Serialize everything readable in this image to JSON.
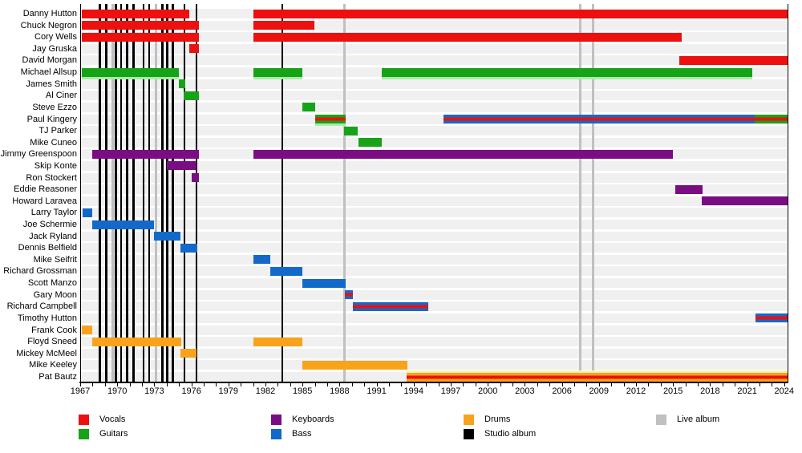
{
  "chart_data": {
    "type": "timeline",
    "title": "",
    "x_axis": {
      "tick_years": [
        1967,
        1970,
        1973,
        1976,
        1979,
        1982,
        1985,
        1988,
        1991,
        1994,
        1997,
        2000,
        2003,
        2006,
        2009,
        2012,
        2015,
        2018,
        2021,
        2024
      ],
      "minor_tick_every": 1,
      "range": [
        1967,
        2024.3
      ]
    },
    "colors": {
      "vocals": "#ee0f0f",
      "guitars": "#17a317",
      "keyboards": "#7a0d82",
      "bass": "#1369c9",
      "drums": "#f9a21b",
      "studio": "#000000",
      "live": "#c0c0c0",
      "stripe": "#ee0f0f",
      "halo_green": "#a9eaa9",
      "halo_yellow": "#fdeeb4",
      "row_band": "#f0f0f0"
    },
    "members": [
      {
        "name": "Danny Hutton",
        "segments": [
          {
            "start": 1967.1,
            "end": 1975.8,
            "color": "vocals"
          },
          {
            "start": 1981.0,
            "end": 2024.25,
            "color": "vocals"
          }
        ]
      },
      {
        "name": "Chuck Negron",
        "segments": [
          {
            "start": 1967.1,
            "end": 1976.6,
            "color": "vocals"
          },
          {
            "start": 1981.0,
            "end": 1985.95,
            "color": "vocals"
          }
        ]
      },
      {
        "name": "Cory Wells",
        "segments": [
          {
            "start": 1967.1,
            "end": 1976.6,
            "color": "vocals"
          },
          {
            "start": 1981.0,
            "end": 2015.7,
            "color": "vocals"
          }
        ]
      },
      {
        "name": "Jay Gruska",
        "segments": [
          {
            "start": 1975.8,
            "end": 1976.6,
            "color": "vocals"
          }
        ]
      },
      {
        "name": "David Morgan",
        "segments": [
          {
            "start": 2015.5,
            "end": 2024.25,
            "color": "vocals"
          }
        ]
      },
      {
        "name": "Michael Allsup",
        "segments": [
          {
            "start": 1967.1,
            "end": 1975.0,
            "color": "guitars",
            "halo": "bottom"
          },
          {
            "start": 1981.0,
            "end": 1985.0,
            "color": "guitars",
            "halo": "bottom"
          },
          {
            "start": 1991.4,
            "end": 2021.4,
            "color": "guitars",
            "halo": "bottom"
          }
        ]
      },
      {
        "name": "James Smith",
        "segments": [
          {
            "start": 1975.0,
            "end": 1975.5,
            "color": "guitars"
          }
        ]
      },
      {
        "name": "Al Ciner",
        "segments": [
          {
            "start": 1975.4,
            "end": 1976.6,
            "color": "guitars"
          }
        ]
      },
      {
        "name": "Steve Ezzo",
        "segments": [
          {
            "start": 1985.0,
            "end": 1986.0,
            "color": "guitars"
          }
        ]
      },
      {
        "name": "Paul Kingery",
        "segments": [
          {
            "start": 1986.0,
            "end": 1988.5,
            "color": "guitars",
            "stripe": true,
            "halo": "bottom"
          },
          {
            "start": 1996.4,
            "end": 2021.6,
            "color": "bass",
            "stripe": true
          },
          {
            "start": 2021.6,
            "end": 2024.25,
            "color": "guitars",
            "stripe": true
          }
        ]
      },
      {
        "name": "TJ Parker",
        "segments": [
          {
            "start": 1988.35,
            "end": 1989.5,
            "color": "guitars"
          }
        ]
      },
      {
        "name": "Mike Cuneo",
        "segments": [
          {
            "start": 1989.5,
            "end": 1991.4,
            "color": "guitars"
          }
        ]
      },
      {
        "name": "Jimmy Greenspoon",
        "segments": [
          {
            "start": 1968.0,
            "end": 1976.6,
            "color": "keyboards"
          },
          {
            "start": 1981.0,
            "end": 2015.0,
            "color": "keyboards"
          }
        ]
      },
      {
        "name": "Skip Konte",
        "segments": [
          {
            "start": 1974.0,
            "end": 1976.4,
            "color": "keyboards"
          }
        ]
      },
      {
        "name": "Ron Stockert",
        "segments": [
          {
            "start": 1976.0,
            "end": 1976.6,
            "color": "keyboards"
          }
        ]
      },
      {
        "name": "Eddie Reasoner",
        "segments": [
          {
            "start": 2015.2,
            "end": 2017.4,
            "color": "keyboards"
          }
        ]
      },
      {
        "name": "Howard Laravea",
        "segments": [
          {
            "start": 2017.3,
            "end": 2024.25,
            "color": "keyboards"
          }
        ]
      },
      {
        "name": "Larry Taylor",
        "segments": [
          {
            "start": 1967.2,
            "end": 1968.0,
            "color": "bass"
          }
        ]
      },
      {
        "name": "Joe Schermie",
        "segments": [
          {
            "start": 1968.0,
            "end": 1973.0,
            "color": "bass"
          }
        ]
      },
      {
        "name": "Jack Ryland",
        "segments": [
          {
            "start": 1973.0,
            "end": 1975.1,
            "color": "bass"
          }
        ]
      },
      {
        "name": "Dennis Belfield",
        "segments": [
          {
            "start": 1975.1,
            "end": 1976.5,
            "color": "bass"
          }
        ]
      },
      {
        "name": "Mike Seifrit",
        "segments": [
          {
            "start": 1981.0,
            "end": 1982.4,
            "color": "bass"
          }
        ]
      },
      {
        "name": "Richard Grossman",
        "segments": [
          {
            "start": 1982.4,
            "end": 1985.0,
            "color": "bass"
          }
        ]
      },
      {
        "name": "Scott Manzo",
        "segments": [
          {
            "start": 1985.0,
            "end": 1988.5,
            "color": "bass"
          }
        ]
      },
      {
        "name": "Gary Moon",
        "segments": [
          {
            "start": 1988.4,
            "end": 1989.1,
            "color": "bass",
            "stripe": true
          }
        ]
      },
      {
        "name": "Richard Campbell",
        "segments": [
          {
            "start": 1989.1,
            "end": 1995.2,
            "color": "bass",
            "stripe": true
          }
        ]
      },
      {
        "name": "Timothy Hutton",
        "segments": [
          {
            "start": 2021.65,
            "end": 2024.25,
            "color": "bass",
            "stripe": true
          }
        ]
      },
      {
        "name": "Frank Cook",
        "segments": [
          {
            "start": 1967.1,
            "end": 1968.0,
            "color": "drums"
          }
        ]
      },
      {
        "name": "Floyd Sneed",
        "segments": [
          {
            "start": 1968.0,
            "end": 1975.2,
            "color": "drums"
          },
          {
            "start": 1981.0,
            "end": 1985.0,
            "color": "drums"
          }
        ]
      },
      {
        "name": "Mickey McMeel",
        "segments": [
          {
            "start": 1975.1,
            "end": 1976.4,
            "color": "drums"
          }
        ]
      },
      {
        "name": "Mike Keeley",
        "segments": [
          {
            "start": 1985.0,
            "end": 1993.5,
            "color": "drums"
          }
        ]
      },
      {
        "name": "Pat Bautz",
        "segments": [
          {
            "start": 1993.4,
            "end": 2024.25,
            "color": "drums",
            "stripe": true,
            "halo": "top-yellow"
          }
        ]
      }
    ],
    "album_lines": {
      "studio_years": [
        1968.6,
        1969.12,
        1969.9,
        1970.31,
        1970.81,
        1971.31,
        1972.13,
        1972.6,
        1973.66,
        1974.03,
        1974.51,
        1975.44,
        1976.42,
        1983.35
      ],
      "live_years": [
        1969.6,
        1973.15,
        1988.38,
        2007.5,
        2008.5
      ]
    },
    "legend": [
      {
        "label": "Vocals",
        "color": "vocals",
        "col": 0,
        "row": 0
      },
      {
        "label": "Guitars",
        "color": "guitars",
        "col": 0,
        "row": 1
      },
      {
        "label": "Keyboards",
        "color": "keyboards",
        "col": 1,
        "row": 0
      },
      {
        "label": "Bass",
        "color": "bass",
        "col": 1,
        "row": 1
      },
      {
        "label": "Drums",
        "color": "drums",
        "col": 2,
        "row": 0
      },
      {
        "label": "Studio album",
        "color": "studio",
        "col": 2,
        "row": 1
      },
      {
        "label": "Live album",
        "color": "live",
        "col": 3,
        "row": 0
      }
    ]
  }
}
